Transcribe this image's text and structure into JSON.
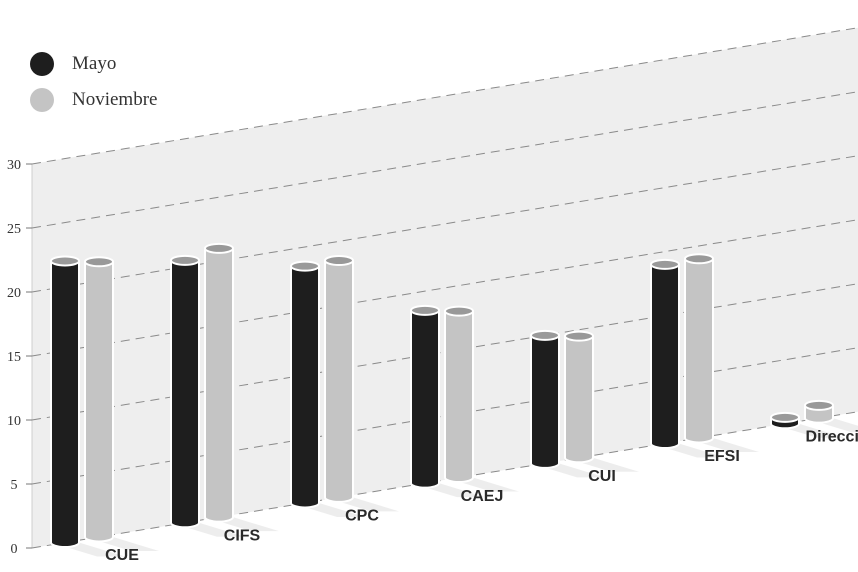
{
  "colors": {
    "mayo": "#1e1e1e",
    "noviembre": "#c4c4c4",
    "wall": "#eeeeee",
    "grid": "#8a8a8a"
  },
  "chart_data": {
    "type": "bar",
    "categories": [
      "CUE",
      "CIFS",
      "CPC",
      "CAEJ",
      "CUI",
      "EFSI",
      "Dirección"
    ],
    "series": [
      {
        "name": "Mayo",
        "values": [
          22,
          20.5,
          18.5,
          13.5,
          10,
          14,
          0.5
        ]
      },
      {
        "name": "Noviembre",
        "values": [
          21.5,
          21,
          18.5,
          13,
          9.5,
          14,
          1
        ]
      }
    ],
    "y_ticks": [
      0,
      5,
      10,
      15,
      20,
      25,
      30
    ],
    "ylim": [
      0,
      30
    ],
    "legend_position": "top-left",
    "grid": true,
    "style": "3d-cylinder"
  },
  "legend": {
    "items": [
      {
        "label": "Mayo",
        "color": "#1e1e1e"
      },
      {
        "label": "Noviembre",
        "color": "#c4c4c4"
      }
    ]
  }
}
